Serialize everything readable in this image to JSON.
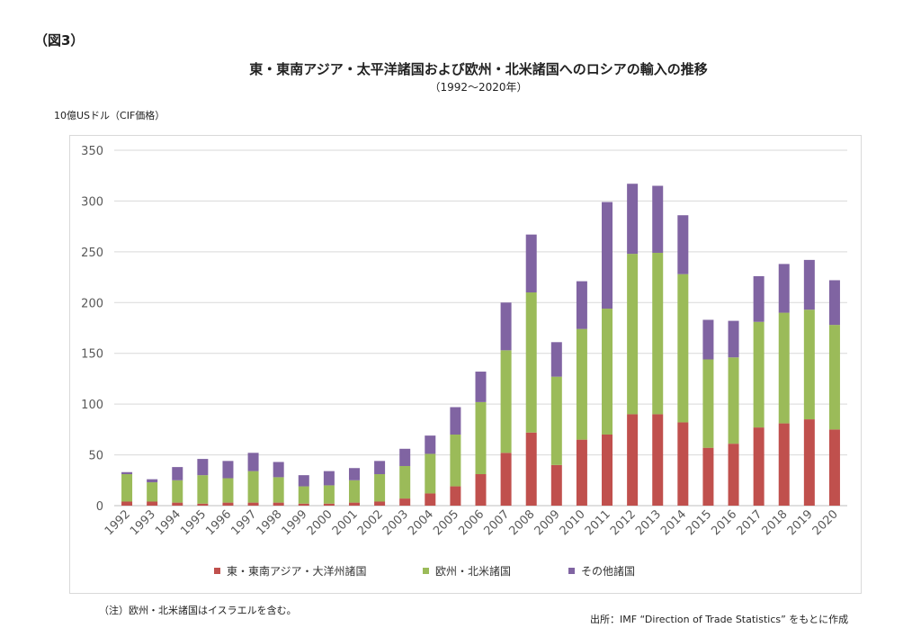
{
  "header": {
    "figure_label": "（図3）",
    "title": "東・東南アジア・太平洋諸国および欧州・北米諸国へのロシアの輸入の推移",
    "subtitle": "（1992～2020年）",
    "unit_label": "10億USドル（CIF価格）"
  },
  "footer": {
    "note": "（注）欧州・北米諸国はイスラエルを含む。",
    "source": "出所：IMF “Direction of Trade Statistics” をもとに作成"
  },
  "chart_data": {
    "type": "bar",
    "stacked": true,
    "title": "東・東南アジア・太平洋諸国および欧州・北米諸国へのロシアの輸入の推移",
    "subtitle": "（1992～2020年）",
    "ylabel": "10億USドル（CIF価格）",
    "xlabel": "",
    "ylim": [
      0,
      350
    ],
    "yticks": [
      0,
      50,
      100,
      150,
      200,
      250,
      300,
      350
    ],
    "grid": true,
    "legend_position": "bottom",
    "categories": [
      "1992",
      "1993",
      "1994",
      "1995",
      "1996",
      "1997",
      "1998",
      "1999",
      "2000",
      "2001",
      "2002",
      "2003",
      "2004",
      "2005",
      "2006",
      "2007",
      "2008",
      "2009",
      "2010",
      "2011",
      "2012",
      "2013",
      "2014",
      "2015",
      "2016",
      "2017",
      "2018",
      "2019",
      "2020"
    ],
    "series": [
      {
        "name": "東・東南アジア・大洋州諸国",
        "color": "#c0504d",
        "values": [
          4,
          4,
          3,
          2,
          3,
          3,
          3,
          2,
          2,
          3,
          4,
          7,
          12,
          19,
          31,
          52,
          72,
          40,
          65,
          70,
          90,
          90,
          82,
          57,
          61,
          77,
          81,
          85,
          75
        ]
      },
      {
        "name": "欧州・北米諸国",
        "color": "#9bbb59",
        "values": [
          27,
          19,
          22,
          28,
          24,
          31,
          25,
          17,
          18,
          22,
          27,
          32,
          39,
          51,
          71,
          101,
          138,
          87,
          109,
          124,
          158,
          159,
          146,
          87,
          85,
          104,
          109,
          108,
          103
        ]
      },
      {
        "name": "その他諸国",
        "color": "#8064a2",
        "values": [
          2,
          3,
          13,
          16,
          17,
          18,
          15,
          11,
          14,
          12,
          13,
          17,
          18,
          27,
          30,
          47,
          57,
          34,
          47,
          105,
          69,
          66,
          58,
          39,
          36,
          45,
          48,
          49,
          44
        ]
      }
    ]
  }
}
